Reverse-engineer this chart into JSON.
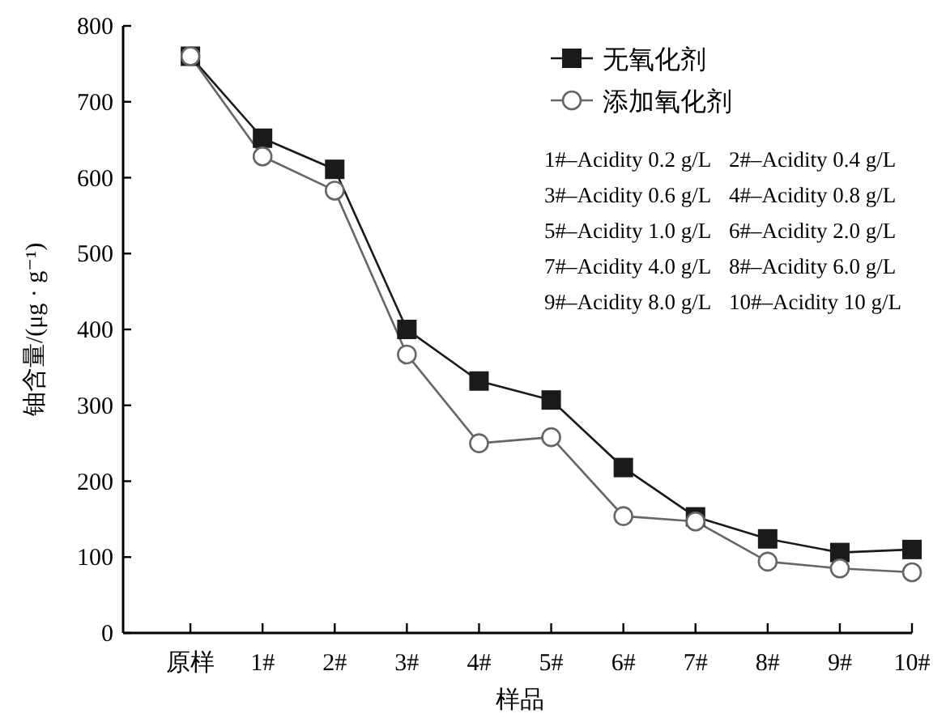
{
  "chart_data": {
    "type": "line",
    "xlabel": "样品",
    "ylabel": "铀含量/(μg · g⁻¹)",
    "categories": [
      "原样",
      "1#",
      "2#",
      "3#",
      "4#",
      "5#",
      "6#",
      "7#",
      "8#",
      "9#",
      "10#"
    ],
    "series": [
      {
        "name": "无氧化剂",
        "color": "#1a1a1a",
        "marker": "square",
        "values": [
          760,
          652,
          611,
          400,
          332,
          307,
          218,
          153,
          124,
          106,
          110
        ]
      },
      {
        "name": "添加氧化剂",
        "color": "#666666",
        "marker": "circle",
        "values": [
          760,
          628,
          583,
          367,
          250,
          258,
          154,
          147,
          94,
          85,
          80
        ]
      }
    ],
    "ylim": [
      0,
      800
    ],
    "yticks": [
      0,
      100,
      200,
      300,
      400,
      500,
      600,
      700,
      800
    ],
    "legend": "top right",
    "grid": false,
    "line_style": "solid",
    "annotations": [
      "1#–Acidity 0.2 g/L",
      "2#–Acidity 0.4 g/L",
      "3#–Acidity 0.6 g/L",
      "4#–Acidity 0.8 g/L",
      "5#–Acidity 1.0 g/L",
      "6#–Acidity 2.0 g/L",
      "7#–Acidity 4.0 g/L",
      "8#–Acidity 6.0 g/L",
      "9#–Acidity 8.0 g/L",
      "10#–Acidity 10 g/L"
    ]
  }
}
